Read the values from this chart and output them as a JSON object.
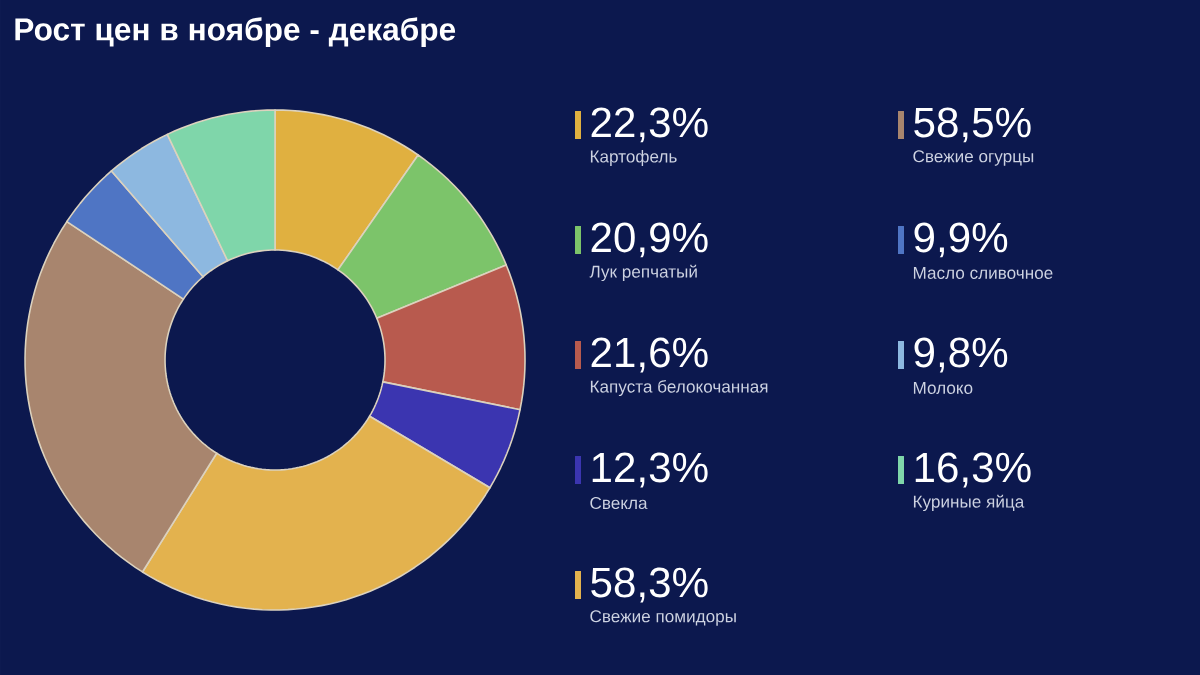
{
  "chart_data": {
    "type": "donut",
    "title": "Рост цен в ноябре - декабре",
    "categories": [
      "Картофель",
      "Лук репчатый",
      "Капуста белокочанная",
      "Свекла",
      "Свежие помидоры",
      "Свежие огурцы",
      "Масло сливочное",
      "Молоко",
      "Куриные яйца"
    ],
    "values": [
      22.3,
      20.9,
      21.6,
      12.3,
      58.3,
      58.5,
      9.9,
      9.8,
      16.3
    ],
    "value_labels": [
      "22,3%",
      "20,9%",
      "21,6%",
      "12,3%",
      "58,3%",
      "58,5%",
      "9,9%",
      "9,8%",
      "16,3%"
    ],
    "colors": [
      "#e0b040",
      "#7cc46a",
      "#b85a4e",
      "#3b35b0",
      "#e3b24e",
      "#a8856e",
      "#4f75c4",
      "#8db8e0",
      "#7fd6aa"
    ],
    "legend": "right"
  }
}
